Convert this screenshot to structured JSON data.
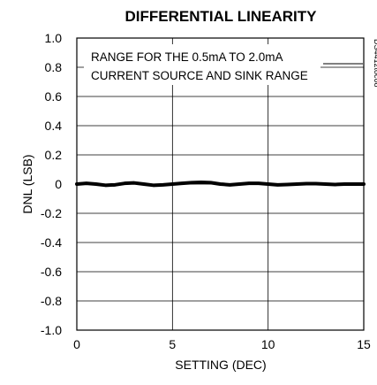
{
  "chart_data": {
    "type": "line",
    "title": "DIFFERENTIAL LINEARITY",
    "xlabel": "SETTING (DEC)",
    "ylabel": "DNL (LSB)",
    "xlim": [
      0,
      15
    ],
    "ylim": [
      -1.0,
      1.0
    ],
    "x_ticks": [
      "0",
      "5",
      "10",
      "15"
    ],
    "y_ticks": [
      "1.0",
      "0.8",
      "0.6",
      "0.4",
      "0.2",
      "0",
      "-0.2",
      "-0.4",
      "-0.6",
      "-0.8",
      "-1.0"
    ],
    "grid": true,
    "annotation": [
      "RANGE FOR THE 0.5mA TO 2.0mA",
      "CURRENT SOURCE AND SINK RANGE"
    ],
    "doc_id": "DS4412toc08",
    "colors": {
      "line": "#000000",
      "grid": "#000000",
      "background": "#ffffff"
    },
    "series": [
      {
        "x": [
          0,
          0.5,
          1,
          1.5,
          2,
          2.5,
          3,
          3.5,
          4,
          4.5,
          5,
          5.5,
          6,
          6.5,
          7,
          7.5,
          8,
          8.5,
          9,
          9.5,
          10,
          10.5,
          11,
          11.5,
          12,
          12.5,
          13,
          13.5,
          14,
          14.5,
          15
        ],
        "values": [
          0.0,
          0.005,
          0.0,
          -0.008,
          -0.005,
          0.005,
          0.008,
          0.0,
          -0.008,
          -0.005,
          0.0,
          0.005,
          0.01,
          0.012,
          0.01,
          0.0,
          -0.005,
          0.0,
          0.005,
          0.005,
          0.0,
          -0.005,
          -0.003,
          0.0,
          0.003,
          0.003,
          0.0,
          -0.003,
          0.0,
          0.0,
          0.0
        ]
      }
    ]
  }
}
